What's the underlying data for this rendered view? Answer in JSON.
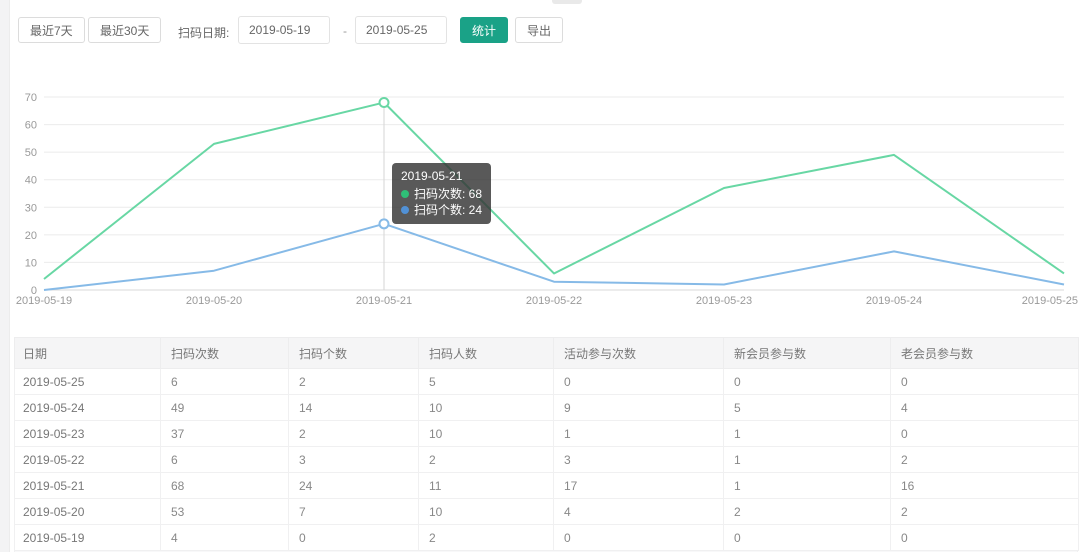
{
  "toolbar": {
    "last7_label": "最近7天",
    "last30_label": "最近30天",
    "date_label": "扫码日期:",
    "date_from": "2019-05-19",
    "date_separator": "-",
    "date_to": "2019-05-25",
    "stats_label": "统计",
    "export_label": "导出"
  },
  "colors": {
    "accent": "#1aa287",
    "series1": "#68d7a4",
    "series2": "#86bae7",
    "bullet1": "#2fbf77",
    "bullet2": "#5191d6",
    "grid": "#ebebeb",
    "axis": "#d9d9d9",
    "tick_text": "#999999",
    "crosshair": "#d6d6d6"
  },
  "chart_data": {
    "type": "line",
    "title": "",
    "xlabel": "",
    "ylabel": "",
    "x": [
      "2019-05-19",
      "2019-05-20",
      "2019-05-21",
      "2019-05-22",
      "2019-05-23",
      "2019-05-24",
      "2019-05-25"
    ],
    "series": [
      {
        "name": "扫码次数",
        "color": "#68d7a4",
        "values": [
          4,
          53,
          68,
          6,
          37,
          49,
          6
        ]
      },
      {
        "name": "扫码个数",
        "color": "#86bae7",
        "values": [
          0,
          7,
          24,
          3,
          2,
          14,
          2
        ]
      }
    ],
    "ylim": [
      0,
      70
    ],
    "yticks": [
      0,
      10,
      20,
      30,
      40,
      50,
      60,
      70
    ],
    "grid": true,
    "legend_position": "none",
    "hover_index": 2,
    "tooltip": {
      "title": "2019-05-21",
      "items": [
        {
          "label": "扫码次数",
          "value": "68",
          "color": "#2fbf77"
        },
        {
          "label": "扫码个数",
          "value": "24",
          "color": "#5191d6"
        }
      ]
    }
  },
  "table": {
    "headers": [
      "日期",
      "扫码次数",
      "扫码个数",
      "扫码人数",
      "活动参与次数",
      "新会员参与数",
      "老会员参与数"
    ],
    "rows": [
      [
        "2019-05-25",
        "6",
        "2",
        "5",
        "0",
        "0",
        "0"
      ],
      [
        "2019-05-24",
        "49",
        "14",
        "10",
        "9",
        "5",
        "4"
      ],
      [
        "2019-05-23",
        "37",
        "2",
        "10",
        "1",
        "1",
        "0"
      ],
      [
        "2019-05-22",
        "6",
        "3",
        "2",
        "3",
        "1",
        "2"
      ],
      [
        "2019-05-21",
        "68",
        "24",
        "11",
        "17",
        "1",
        "16"
      ],
      [
        "2019-05-20",
        "53",
        "7",
        "10",
        "4",
        "2",
        "2"
      ],
      [
        "2019-05-19",
        "4",
        "0",
        "2",
        "0",
        "0",
        "0"
      ]
    ]
  }
}
